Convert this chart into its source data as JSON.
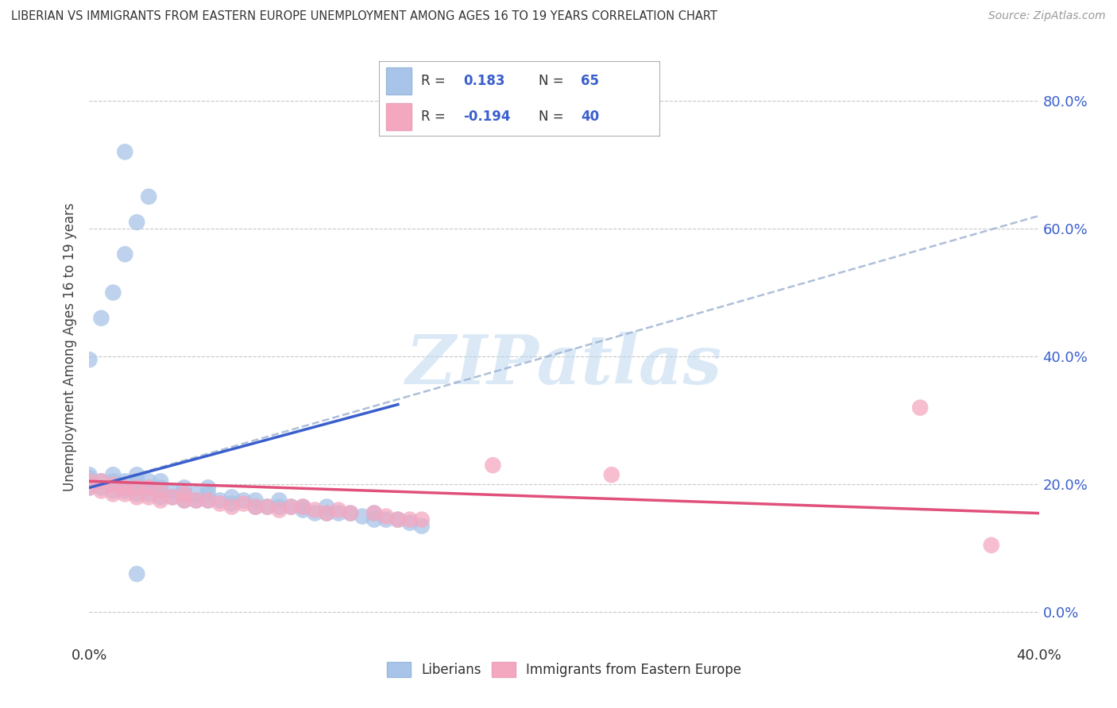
{
  "title": "LIBERIAN VS IMMIGRANTS FROM EASTERN EUROPE UNEMPLOYMENT AMONG AGES 16 TO 19 YEARS CORRELATION CHART",
  "source": "Source: ZipAtlas.com",
  "ylabel": "Unemployment Among Ages 16 to 19 years",
  "xlim": [
    0.0,
    0.4
  ],
  "ylim": [
    -0.05,
    0.88
  ],
  "xticks": [
    0.0,
    0.4
  ],
  "xtick_labels": [
    "0.0%",
    "40.0%"
  ],
  "yticks_right": [
    0.0,
    0.2,
    0.4,
    0.6,
    0.8
  ],
  "ytick_labels_right": [
    "0.0%",
    "20.0%",
    "40.0%",
    "60.0%",
    "80.0%"
  ],
  "R_blue": 0.183,
  "N_blue": 65,
  "R_pink": -0.194,
  "N_pink": 40,
  "blue_color": "#a8c4e8",
  "pink_color": "#f4a8c0",
  "blue_line_color": "#3a5fcd",
  "pink_line_color": "#e0507a",
  "dashed_line_color": "#9ab0d0",
  "background_color": "#ffffff",
  "grid_color": "#c8c8c8",
  "watermark": "ZIPatlas",
  "watermark_color": "#b8d4f0",
  "legend_entries": [
    "Liberians",
    "Immigrants from Eastern Europe"
  ],
  "blue_line_x": [
    0.0,
    0.13
  ],
  "blue_line_y": [
    0.195,
    0.325
  ],
  "dashed_line_x": [
    0.0,
    0.4
  ],
  "dashed_line_y": [
    0.195,
    0.62
  ],
  "pink_line_x": [
    0.0,
    0.4
  ],
  "pink_line_y": [
    0.205,
    0.155
  ],
  "blue_pts_x": [
    0.0,
    0.0,
    0.0,
    0.005,
    0.005,
    0.01,
    0.01,
    0.01,
    0.01,
    0.015,
    0.015,
    0.015,
    0.02,
    0.02,
    0.02,
    0.02,
    0.025,
    0.025,
    0.025,
    0.03,
    0.03,
    0.03,
    0.03,
    0.035,
    0.035,
    0.04,
    0.04,
    0.04,
    0.045,
    0.045,
    0.05,
    0.05,
    0.05,
    0.055,
    0.06,
    0.06,
    0.065,
    0.07,
    0.07,
    0.075,
    0.08,
    0.08,
    0.085,
    0.09,
    0.09,
    0.095,
    0.1,
    0.1,
    0.105,
    0.11,
    0.115,
    0.12,
    0.12,
    0.125,
    0.13,
    0.135,
    0.14,
    0.0,
    0.005,
    0.01,
    0.015,
    0.02,
    0.025,
    0.015,
    0.02
  ],
  "blue_pts_y": [
    0.195,
    0.21,
    0.215,
    0.195,
    0.205,
    0.19,
    0.2,
    0.205,
    0.215,
    0.19,
    0.195,
    0.205,
    0.185,
    0.195,
    0.205,
    0.215,
    0.185,
    0.195,
    0.205,
    0.18,
    0.19,
    0.195,
    0.205,
    0.18,
    0.19,
    0.175,
    0.185,
    0.195,
    0.175,
    0.185,
    0.175,
    0.185,
    0.195,
    0.175,
    0.17,
    0.18,
    0.175,
    0.165,
    0.175,
    0.165,
    0.165,
    0.175,
    0.165,
    0.16,
    0.165,
    0.155,
    0.155,
    0.165,
    0.155,
    0.155,
    0.15,
    0.145,
    0.155,
    0.145,
    0.145,
    0.14,
    0.135,
    0.395,
    0.46,
    0.5,
    0.56,
    0.61,
    0.65,
    0.72,
    0.06
  ],
  "pink_pts_x": [
    0.0,
    0.0,
    0.005,
    0.005,
    0.01,
    0.01,
    0.015,
    0.015,
    0.02,
    0.02,
    0.025,
    0.025,
    0.03,
    0.03,
    0.035,
    0.04,
    0.04,
    0.045,
    0.05,
    0.055,
    0.06,
    0.065,
    0.07,
    0.075,
    0.08,
    0.085,
    0.09,
    0.095,
    0.1,
    0.105,
    0.11,
    0.12,
    0.125,
    0.13,
    0.135,
    0.14,
    0.17,
    0.22,
    0.35,
    0.38
  ],
  "pink_pts_y": [
    0.195,
    0.205,
    0.19,
    0.205,
    0.185,
    0.2,
    0.185,
    0.195,
    0.18,
    0.195,
    0.18,
    0.195,
    0.175,
    0.19,
    0.18,
    0.175,
    0.185,
    0.175,
    0.175,
    0.17,
    0.165,
    0.17,
    0.165,
    0.165,
    0.16,
    0.165,
    0.165,
    0.16,
    0.155,
    0.16,
    0.155,
    0.155,
    0.15,
    0.145,
    0.145,
    0.145,
    0.23,
    0.215,
    0.32,
    0.105
  ]
}
